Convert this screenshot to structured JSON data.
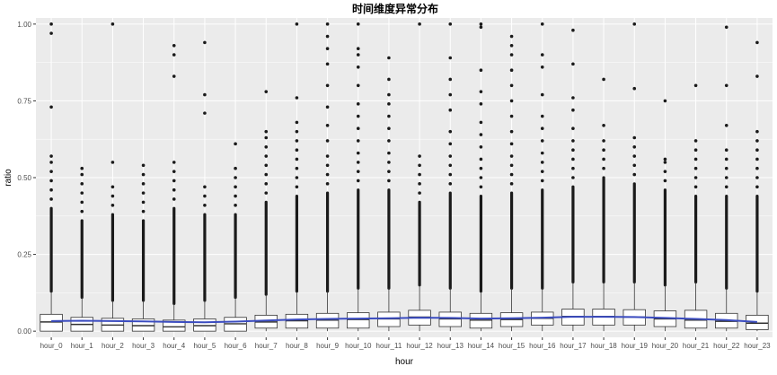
{
  "chart_data": {
    "type": "boxplot",
    "title": "时间维度异常分布",
    "xlabel": "hour",
    "ylabel": "ratio",
    "ylim": [
      -0.02,
      1.02
    ],
    "yticks": [
      0.0,
      0.25,
      0.5,
      0.75,
      1.0
    ],
    "ytick_labels": [
      "0.00",
      "0.25",
      "0.50",
      "0.75",
      "1.00"
    ],
    "grid": true,
    "legend": "none",
    "colors": {
      "panel": "#ebebeb",
      "grid": "#ffffff",
      "box_fill": "#ffffff",
      "box_line": "#333333",
      "outlier": "#1a1a1a",
      "trend": "#3b4cc0"
    },
    "categories": [
      "hour_0",
      "hour_1",
      "hour_2",
      "hour_3",
      "hour_4",
      "hour_5",
      "hour_6",
      "hour_7",
      "hour_8",
      "hour_9",
      "hour_10",
      "hour_11",
      "hour_12",
      "hour_13",
      "hour_14",
      "hour_15",
      "hour_16",
      "hour_17",
      "hour_18",
      "hour_19",
      "hour_20",
      "hour_21",
      "hour_22",
      "hour_23"
    ],
    "boxes": [
      {
        "q1": 0.0,
        "median": 0.03,
        "q3": 0.055,
        "whisker_low": 0.0,
        "whisker_high": 0.13,
        "dense_outlier_top": 0.4,
        "outliers": [
          0.43,
          0.46,
          0.49,
          0.52,
          0.55,
          0.57,
          0.73,
          0.97,
          1.0
        ]
      },
      {
        "q1": 0.0,
        "median": 0.022,
        "q3": 0.045,
        "whisker_low": 0.0,
        "whisker_high": 0.11,
        "dense_outlier_top": 0.36,
        "outliers": [
          0.39,
          0.42,
          0.45,
          0.48,
          0.51,
          0.53
        ]
      },
      {
        "q1": 0.0,
        "median": 0.02,
        "q3": 0.042,
        "whisker_low": 0.0,
        "whisker_high": 0.1,
        "dense_outlier_top": 0.38,
        "outliers": [
          0.41,
          0.44,
          0.47,
          0.55,
          1.0
        ]
      },
      {
        "q1": 0.0,
        "median": 0.018,
        "q3": 0.04,
        "whisker_low": 0.0,
        "whisker_high": 0.1,
        "dense_outlier_top": 0.36,
        "outliers": [
          0.39,
          0.42,
          0.45,
          0.48,
          0.51,
          0.54
        ]
      },
      {
        "q1": 0.0,
        "median": 0.014,
        "q3": 0.036,
        "whisker_low": 0.0,
        "whisker_high": 0.09,
        "dense_outlier_top": 0.4,
        "outliers": [
          0.43,
          0.46,
          0.49,
          0.52,
          0.55,
          0.83,
          0.9,
          0.93
        ]
      },
      {
        "q1": 0.0,
        "median": 0.018,
        "q3": 0.04,
        "whisker_low": 0.0,
        "whisker_high": 0.1,
        "dense_outlier_top": 0.38,
        "outliers": [
          0.41,
          0.44,
          0.47,
          0.71,
          0.77,
          0.94
        ]
      },
      {
        "q1": 0.0,
        "median": 0.024,
        "q3": 0.045,
        "whisker_low": 0.0,
        "whisker_high": 0.11,
        "dense_outlier_top": 0.38,
        "outliers": [
          0.41,
          0.44,
          0.47,
          0.5,
          0.53,
          0.61
        ]
      },
      {
        "q1": 0.01,
        "median": 0.03,
        "q3": 0.052,
        "whisker_low": 0.0,
        "whisker_high": 0.12,
        "dense_outlier_top": 0.42,
        "outliers": [
          0.45,
          0.48,
          0.51,
          0.54,
          0.57,
          0.6,
          0.63,
          0.65,
          0.78
        ]
      },
      {
        "q1": 0.01,
        "median": 0.034,
        "q3": 0.055,
        "whisker_low": 0.0,
        "whisker_high": 0.13,
        "dense_outlier_top": 0.44,
        "outliers": [
          0.47,
          0.5,
          0.53,
          0.56,
          0.59,
          0.62,
          0.65,
          0.68,
          0.76,
          1.0
        ]
      },
      {
        "q1": 0.01,
        "median": 0.036,
        "q3": 0.058,
        "whisker_low": 0.0,
        "whisker_high": 0.13,
        "dense_outlier_top": 0.45,
        "outliers": [
          0.48,
          0.51,
          0.54,
          0.57,
          0.62,
          0.67,
          0.73,
          0.8,
          0.87,
          0.92,
          0.96,
          1.0
        ]
      },
      {
        "q1": 0.01,
        "median": 0.038,
        "q3": 0.06,
        "whisker_low": 0.0,
        "whisker_high": 0.14,
        "dense_outlier_top": 0.46,
        "outliers": [
          0.49,
          0.52,
          0.55,
          0.58,
          0.62,
          0.66,
          0.7,
          0.74,
          0.8,
          0.86,
          0.9,
          0.92,
          1.0
        ]
      },
      {
        "q1": 0.015,
        "median": 0.04,
        "q3": 0.062,
        "whisker_low": 0.0,
        "whisker_high": 0.14,
        "dense_outlier_top": 0.46,
        "outliers": [
          0.49,
          0.52,
          0.55,
          0.58,
          0.62,
          0.66,
          0.7,
          0.74,
          0.77,
          0.82,
          0.89
        ]
      },
      {
        "q1": 0.02,
        "median": 0.046,
        "q3": 0.068,
        "whisker_low": 0.0,
        "whisker_high": 0.15,
        "dense_outlier_top": 0.42,
        "outliers": [
          0.45,
          0.48,
          0.51,
          0.54,
          0.57,
          1.0
        ]
      },
      {
        "q1": 0.015,
        "median": 0.04,
        "q3": 0.062,
        "whisker_low": 0.0,
        "whisker_high": 0.14,
        "dense_outlier_top": 0.45,
        "outliers": [
          0.48,
          0.51,
          0.54,
          0.57,
          0.61,
          0.65,
          0.72,
          0.77,
          0.82,
          0.89,
          1.0
        ]
      },
      {
        "q1": 0.01,
        "median": 0.036,
        "q3": 0.058,
        "whisker_low": 0.0,
        "whisker_high": 0.13,
        "dense_outlier_top": 0.44,
        "outliers": [
          0.47,
          0.5,
          0.53,
          0.56,
          0.6,
          0.64,
          0.68,
          0.74,
          0.78,
          0.85,
          0.99,
          1.0
        ]
      },
      {
        "q1": 0.015,
        "median": 0.038,
        "q3": 0.06,
        "whisker_low": 0.0,
        "whisker_high": 0.14,
        "dense_outlier_top": 0.45,
        "outliers": [
          0.48,
          0.51,
          0.54,
          0.57,
          0.61,
          0.65,
          0.7,
          0.75,
          0.8,
          0.85,
          0.9,
          0.93,
          0.96
        ]
      },
      {
        "q1": 0.02,
        "median": 0.042,
        "q3": 0.062,
        "whisker_low": 0.0,
        "whisker_high": 0.14,
        "dense_outlier_top": 0.46,
        "outliers": [
          0.49,
          0.52,
          0.55,
          0.58,
          0.62,
          0.66,
          0.7,
          0.77,
          0.86,
          0.9,
          1.0
        ]
      },
      {
        "q1": 0.02,
        "median": 0.048,
        "q3": 0.072,
        "whisker_low": 0.0,
        "whisker_high": 0.16,
        "dense_outlier_top": 0.47,
        "outliers": [
          0.5,
          0.53,
          0.56,
          0.59,
          0.62,
          0.66,
          0.72,
          0.76,
          0.87,
          0.98
        ]
      },
      {
        "q1": 0.02,
        "median": 0.048,
        "q3": 0.072,
        "whisker_low": 0.0,
        "whisker_high": 0.16,
        "dense_outlier_top": 0.5,
        "outliers": [
          0.53,
          0.56,
          0.59,
          0.62,
          0.67,
          0.82
        ]
      },
      {
        "q1": 0.02,
        "median": 0.046,
        "q3": 0.07,
        "whisker_low": 0.0,
        "whisker_high": 0.16,
        "dense_outlier_top": 0.48,
        "outliers": [
          0.51,
          0.54,
          0.57,
          0.6,
          0.63,
          0.79,
          1.0
        ]
      },
      {
        "q1": 0.015,
        "median": 0.04,
        "q3": 0.066,
        "whisker_low": 0.0,
        "whisker_high": 0.15,
        "dense_outlier_top": 0.46,
        "outliers": [
          0.49,
          0.52,
          0.55,
          0.56,
          0.75
        ]
      },
      {
        "q1": 0.01,
        "median": 0.036,
        "q3": 0.068,
        "whisker_low": 0.0,
        "whisker_high": 0.16,
        "dense_outlier_top": 0.44,
        "outliers": [
          0.47,
          0.5,
          0.53,
          0.56,
          0.59,
          0.62,
          0.8
        ]
      },
      {
        "q1": 0.01,
        "median": 0.032,
        "q3": 0.058,
        "whisker_low": 0.0,
        "whisker_high": 0.14,
        "dense_outlier_top": 0.44,
        "outliers": [
          0.47,
          0.5,
          0.53,
          0.56,
          0.59,
          0.67,
          0.8,
          0.99
        ]
      },
      {
        "q1": 0.005,
        "median": 0.026,
        "q3": 0.052,
        "whisker_low": 0.0,
        "whisker_high": 0.13,
        "dense_outlier_top": 0.44,
        "outliers": [
          0.47,
          0.5,
          0.53,
          0.56,
          0.59,
          0.62,
          0.65,
          0.83,
          0.94
        ]
      }
    ],
    "trend_line": {
      "name": "",
      "values": [
        0.033,
        0.034,
        0.033,
        0.032,
        0.03,
        0.029,
        0.031,
        0.035,
        0.038,
        0.04,
        0.041,
        0.042,
        0.044,
        0.043,
        0.041,
        0.042,
        0.044,
        0.047,
        0.047,
        0.046,
        0.043,
        0.04,
        0.036,
        0.03
      ]
    }
  }
}
